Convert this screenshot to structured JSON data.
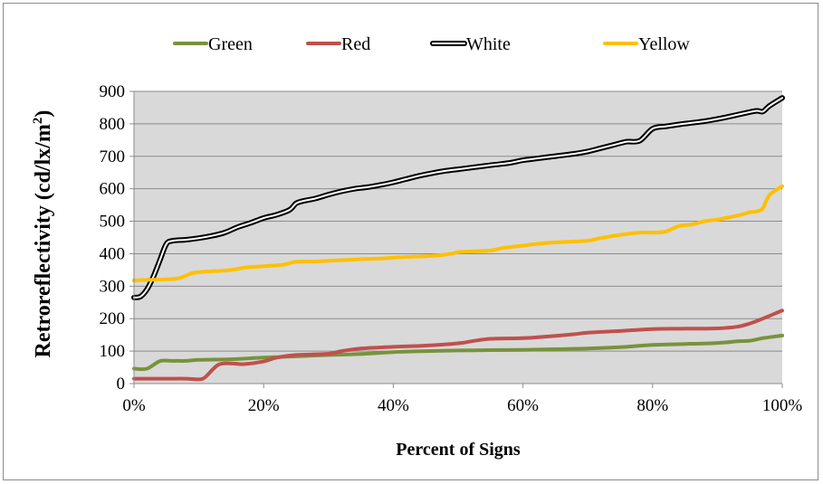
{
  "chart_data": {
    "type": "line",
    "title": "",
    "xlabel": "Percent of Signs",
    "ylabel": "Retroreflectivity (cd/lx/m²)",
    "ylabel_parts": {
      "main": "Retroreflectivity (cd/lx/m",
      "sup": "2",
      "tail": ")"
    },
    "xlim": [
      0,
      100
    ],
    "ylim": [
      0,
      900
    ],
    "x_ticks": [
      0,
      20,
      40,
      60,
      80,
      100
    ],
    "x_tick_labels": [
      "0%",
      "20%",
      "40%",
      "60%",
      "80%",
      "100%"
    ],
    "y_ticks": [
      0,
      100,
      200,
      300,
      400,
      500,
      600,
      700,
      800,
      900
    ],
    "y_tick_labels": [
      "0",
      "100",
      "200",
      "300",
      "400",
      "500",
      "600",
      "700",
      "800",
      "900"
    ],
    "grid": "horizontal",
    "plot_background": "#d9d9d9",
    "legend_position": "top",
    "series": [
      {
        "name": "Green",
        "color": "#77933c",
        "style": "solid",
        "x": [
          0,
          2,
          4,
          6,
          8,
          10,
          15,
          20,
          25,
          30,
          35,
          40,
          45,
          50,
          55,
          60,
          65,
          70,
          75,
          80,
          85,
          90,
          93,
          95,
          97,
          100
        ],
        "y": [
          46,
          46,
          69,
          70,
          70,
          73,
          75,
          80,
          84,
          88,
          91,
          97,
          100,
          102,
          103,
          104,
          106,
          108,
          112,
          119,
          122,
          125,
          130,
          132,
          140,
          148
        ]
      },
      {
        "name": "Red",
        "color": "#c0504d",
        "style": "solid",
        "x": [
          0,
          5,
          8,
          10,
          11,
          13,
          15,
          17,
          20,
          22,
          25,
          30,
          32,
          35,
          40,
          45,
          50,
          52,
          55,
          60,
          65,
          68,
          70,
          75,
          80,
          85,
          90,
          93,
          95,
          97,
          100
        ],
        "y": [
          15,
          15,
          15,
          13,
          20,
          58,
          62,
          60,
          68,
          80,
          88,
          92,
          100,
          108,
          113,
          117,
          124,
          130,
          138,
          140,
          147,
          152,
          157,
          162,
          168,
          169,
          170,
          175,
          185,
          200,
          225
        ]
      },
      {
        "name": "White",
        "color": "#000000",
        "style": "double",
        "x": [
          0,
          1,
          2,
          3,
          4,
          5,
          6,
          8,
          10,
          12,
          14,
          16,
          18,
          20,
          22,
          24,
          25,
          26,
          28,
          30,
          32,
          34,
          36,
          38,
          40,
          42,
          44,
          46,
          48,
          50,
          52,
          54,
          56,
          58,
          60,
          62,
          64,
          66,
          68,
          70,
          72,
          74,
          76,
          78,
          80,
          82,
          84,
          86,
          88,
          90,
          92,
          94,
          96,
          97,
          98,
          100
        ],
        "y": [
          265,
          268,
          290,
          330,
          380,
          430,
          440,
          443,
          448,
          455,
          465,
          482,
          495,
          510,
          520,
          535,
          555,
          562,
          570,
          582,
          592,
          600,
          605,
          612,
          620,
          630,
          640,
          648,
          655,
          660,
          665,
          670,
          675,
          680,
          688,
          693,
          698,
          703,
          708,
          715,
          725,
          735,
          745,
          748,
          785,
          792,
          798,
          803,
          808,
          815,
          823,
          832,
          840,
          838,
          855,
          880
        ]
      },
      {
        "name": "Yellow",
        "color": "#ffc000",
        "style": "solid",
        "x": [
          0,
          3,
          5,
          7,
          9,
          11,
          13,
          15,
          17,
          19,
          21,
          23,
          25,
          28,
          30,
          33,
          35,
          38,
          40,
          42,
          45,
          47,
          49,
          50,
          52,
          55,
          57,
          60,
          62,
          65,
          67,
          70,
          72,
          75,
          78,
          80,
          82,
          84,
          86,
          88,
          90,
          92,
          94,
          95,
          96,
          97,
          98,
          100
        ],
        "y": [
          318,
          320,
          321,
          325,
          340,
          345,
          347,
          350,
          357,
          360,
          363,
          366,
          375,
          376,
          378,
          381,
          383,
          385,
          388,
          390,
          392,
          395,
          400,
          405,
          407,
          410,
          418,
          425,
          430,
          435,
          437,
          440,
          448,
          458,
          465,
          465,
          468,
          485,
          490,
          500,
          505,
          513,
          522,
          528,
          530,
          540,
          580,
          608
        ]
      }
    ]
  }
}
